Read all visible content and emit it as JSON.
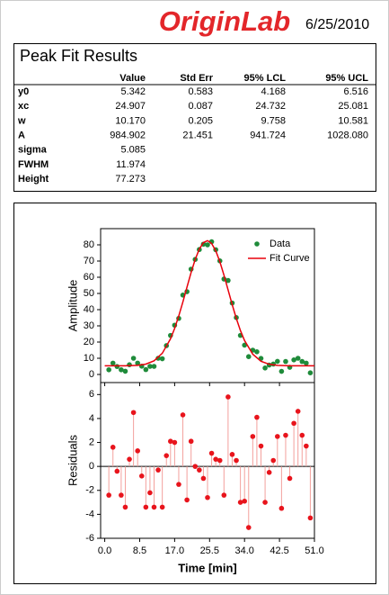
{
  "header": {
    "logo": "OriginLab",
    "date": "6/25/2010"
  },
  "title": "Peak Fit Results",
  "table": {
    "columns": [
      "Value",
      "Std Err",
      "95% LCL",
      "95% UCL"
    ],
    "rows": [
      [
        "y0",
        "5.342",
        "0.583",
        "4.168",
        "6.516"
      ],
      [
        "xc",
        "24.907",
        "0.087",
        "24.732",
        "25.081"
      ],
      [
        "w",
        "10.170",
        "0.205",
        "9.758",
        "10.581"
      ],
      [
        "A",
        "984.902",
        "21.451",
        "941.724",
        "1028.080"
      ],
      [
        "sigma",
        "5.085"
      ],
      [
        "FWHM",
        "11.974"
      ],
      [
        "Height",
        "77.273"
      ]
    ]
  },
  "chart_data": [
    {
      "type": "scatter",
      "ylabel": "Amplitude",
      "xlim": [
        -1,
        51
      ],
      "ylim": [
        -5,
        90
      ],
      "yticks": [
        0,
        10,
        20,
        30,
        40,
        50,
        60,
        70,
        80
      ],
      "legend": "upper right",
      "series": [
        {
          "name": "Data",
          "type": "scatter",
          "color": "#1f8b3a",
          "x": [
            1,
            2,
            3,
            4,
            5,
            6,
            7,
            8,
            9,
            10,
            11,
            12,
            13,
            14,
            15,
            16,
            17,
            18,
            19,
            20,
            21,
            22,
            23,
            24,
            25,
            26,
            27,
            28,
            29,
            30,
            31,
            32,
            33,
            34,
            35,
            36,
            37,
            38,
            39,
            40,
            41,
            42,
            43,
            44,
            45,
            46,
            47,
            48,
            49,
            50
          ],
          "values": [
            2.9,
            7.0,
            4.9,
            2.9,
            2.0,
            6.0,
            10.0,
            7.0,
            5.1,
            3.0,
            5.0,
            5.0,
            10.0,
            9.7,
            17.8,
            24.1,
            30.4,
            34.6,
            49.0,
            51.1,
            65.0,
            71.0,
            77.1,
            80.4,
            80.0,
            81.9,
            77.0,
            70.1,
            58.9,
            58.0,
            44.1,
            35.1,
            24.1,
            18.1,
            11.0,
            15.0,
            14.0,
            9.9,
            4.0,
            5.8,
            6.4,
            8.1,
            1.9,
            8.0,
            4.4,
            9.0,
            10.0,
            8.0,
            7.0,
            1.0
          ]
        },
        {
          "name": "Fit Curve",
          "type": "line",
          "color": "#e8000b",
          "x": [
            0,
            5,
            8,
            10,
            12,
            14,
            16,
            17,
            18,
            19,
            20,
            21,
            22,
            23,
            24,
            25,
            26,
            27,
            28,
            29,
            30,
            31,
            32,
            33,
            34,
            36,
            38,
            40,
            42,
            45,
            51
          ],
          "values": [
            5.34,
            5.38,
            5.65,
            6.39,
            8.42,
            13.08,
            22.01,
            28.4,
            36.07,
            44.7,
            53.85,
            62.9,
            70.97,
            77.35,
            81.38,
            82.6,
            80.84,
            76.35,
            69.57,
            61.3,
            52.17,
            43.1,
            34.57,
            27.1,
            20.97,
            12.51,
            8.15,
            6.29,
            5.61,
            5.36,
            5.34
          ]
        }
      ]
    },
    {
      "type": "stem",
      "ylabel": "Residuals",
      "xlabel": "Time [min]",
      "xlim": [
        -1,
        51
      ],
      "ylim": [
        -6,
        7
      ],
      "yticks": [
        -6,
        -4,
        -2,
        0,
        2,
        4,
        6
      ],
      "xticks": [
        {
          "value": 0,
          "label": "0.0"
        },
        8.5,
        {
          "value": 17,
          "label": "17.0"
        },
        25.5,
        {
          "value": 34,
          "label": "34.0"
        },
        42.5,
        {
          "value": 51,
          "label": "51.0"
        }
      ],
      "series": [
        {
          "color": "#e8141c",
          "x": [
            1,
            2,
            3,
            4,
            5,
            6,
            7,
            8,
            9,
            10,
            11,
            12,
            13,
            14,
            15,
            16,
            17,
            18,
            19,
            20,
            21,
            22,
            23,
            24,
            25,
            26,
            27,
            28,
            29,
            30,
            31,
            32,
            33,
            34,
            35,
            36,
            37,
            38,
            39,
            40,
            41,
            42,
            43,
            44,
            45,
            46,
            47,
            48,
            49,
            50
          ],
          "values": [
            -2.4,
            1.6,
            -0.4,
            -2.4,
            -3.4,
            0.6,
            4.5,
            1.3,
            -0.8,
            -3.4,
            -2.2,
            -3.4,
            -0.3,
            -3.4,
            0.9,
            2.1,
            2.0,
            -1.5,
            4.3,
            -2.8,
            2.1,
            0.0,
            -0.3,
            -1.0,
            -2.6,
            1.1,
            0.6,
            0.5,
            -2.4,
            5.8,
            1.0,
            0.5,
            -3.0,
            -2.9,
            -5.1,
            2.5,
            4.1,
            1.7,
            -3.0,
            -0.5,
            0.5,
            2.5,
            -3.5,
            2.6,
            -1.0,
            3.6,
            4.6,
            2.6,
            1.7,
            -4.3
          ]
        }
      ]
    }
  ]
}
